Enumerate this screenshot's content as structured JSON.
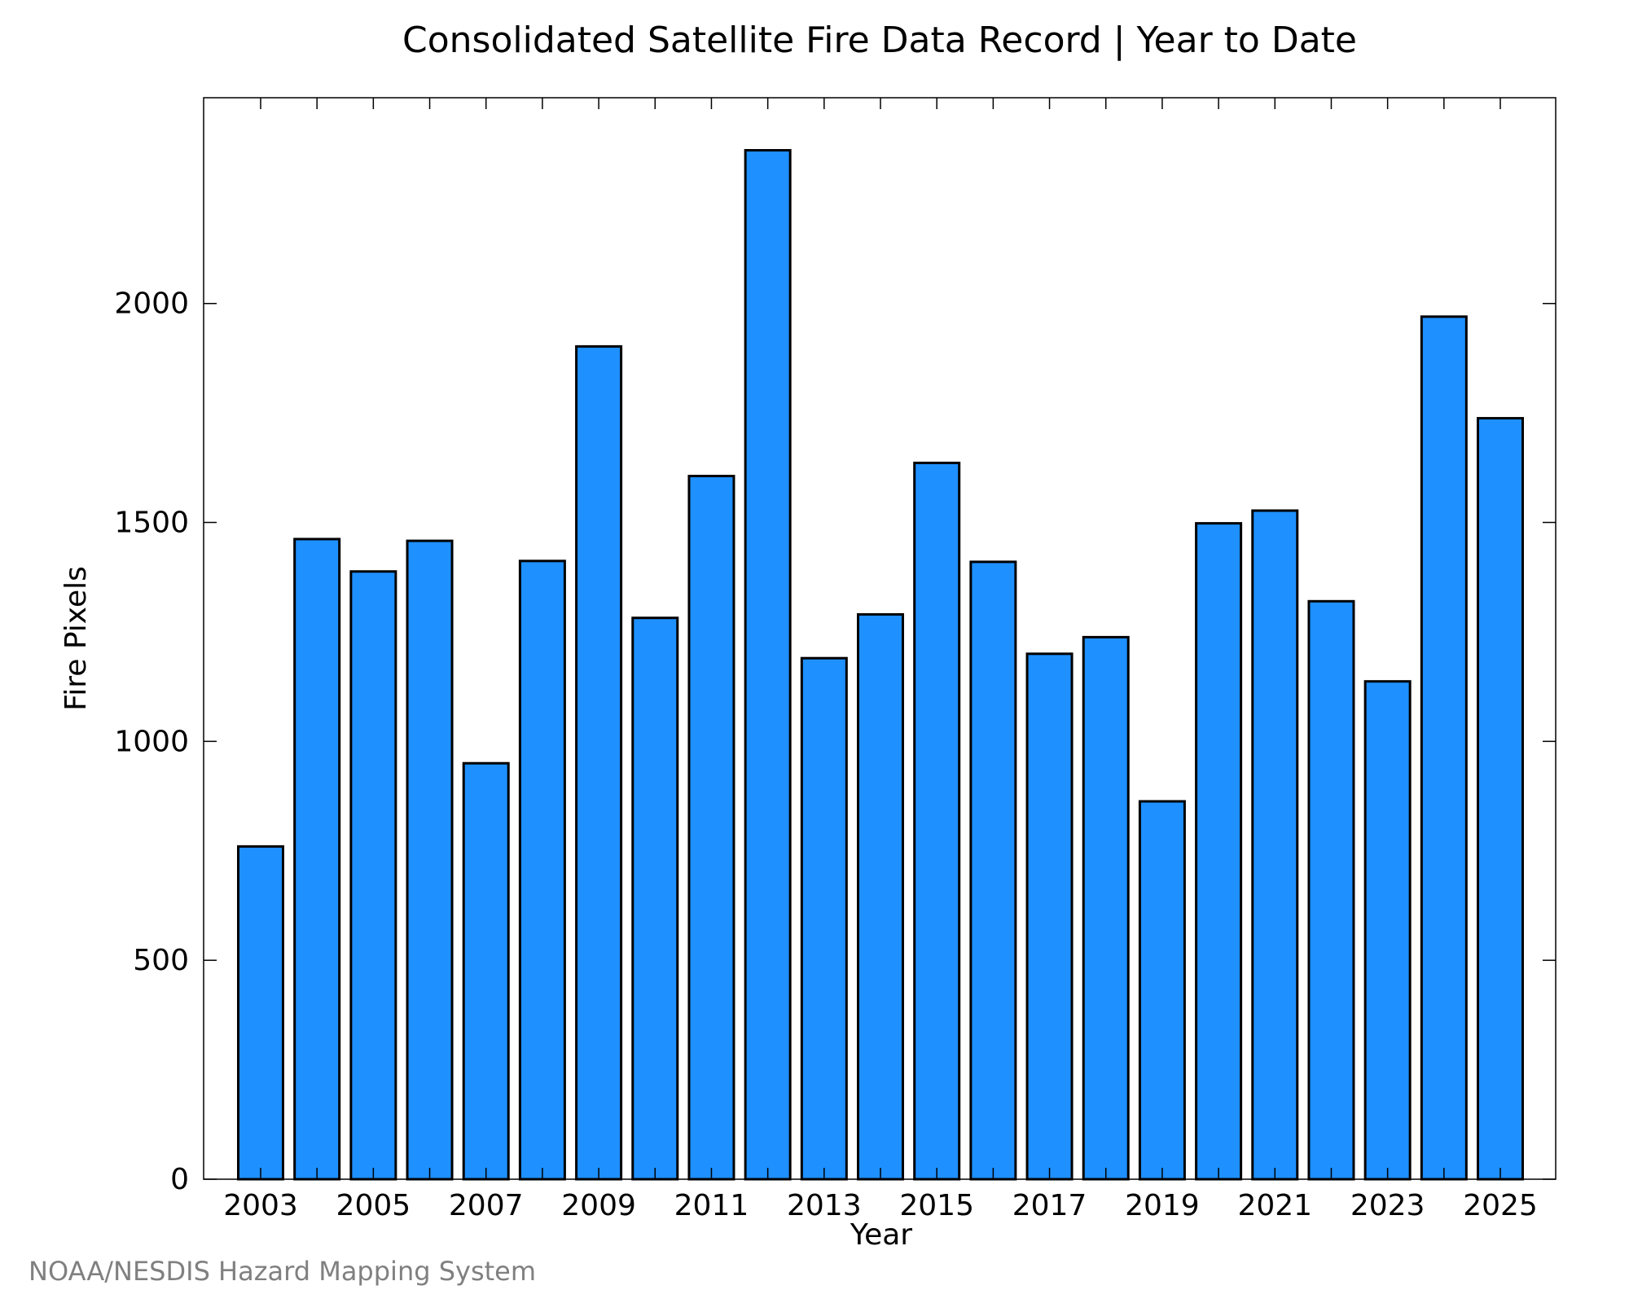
{
  "chart_data": {
    "type": "bar",
    "title": "Consolidated Satellite Fire Data Record | Year to Date",
    "xlabel": "Year",
    "ylabel": "Fire Pixels",
    "categories": [
      "2003",
      "2004",
      "2005",
      "2006",
      "2007",
      "2008",
      "2009",
      "2010",
      "2011",
      "2012",
      "2013",
      "2014",
      "2015",
      "2016",
      "2017",
      "2018",
      "2019",
      "2020",
      "2021",
      "2022",
      "2023",
      "2024",
      "2025"
    ],
    "values": [
      760,
      1462,
      1388,
      1458,
      950,
      1412,
      1902,
      1282,
      1606,
      2350,
      1190,
      1290,
      1636,
      1410,
      1200,
      1238,
      863,
      1498,
      1527,
      1320,
      1137,
      1970,
      1738
    ],
    "x_tick_labels": [
      "2003",
      "2005",
      "2007",
      "2009",
      "2011",
      "2013",
      "2015",
      "2017",
      "2019",
      "2021",
      "2023",
      "2025"
    ],
    "y_ticks": [
      0,
      500,
      1000,
      1500,
      2000
    ],
    "ylim": [
      0,
      2470
    ],
    "bar_color": "#1e90ff",
    "grid": false,
    "legend": "none"
  },
  "credit": "NOAA/NESDIS Hazard Mapping System"
}
